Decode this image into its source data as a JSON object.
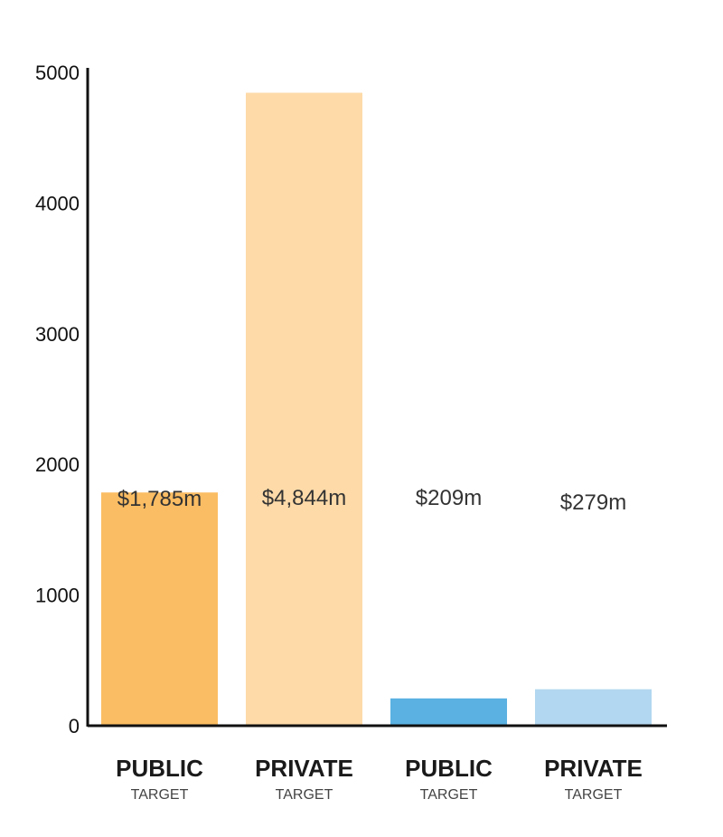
{
  "chart_data": {
    "type": "bar",
    "ylim": [
      0,
      5000
    ],
    "yticks": [
      0,
      1000,
      2000,
      3000,
      4000,
      5000
    ],
    "grid": false,
    "categories": [
      {
        "label": "PUBLIC",
        "sublabel": "TARGET"
      },
      {
        "label": "PRIVATE",
        "sublabel": "TARGET"
      },
      {
        "label": "PUBLIC",
        "sublabel": "TARGET"
      },
      {
        "label": "PRIVATE",
        "sublabel": "TARGET"
      }
    ],
    "values": [
      1785,
      4844,
      209,
      279
    ],
    "value_labels": [
      "$1,785m",
      "$4,844m",
      "$209m",
      "$279m"
    ],
    "colors": [
      "#fbbd63",
      "#fddaa8",
      "#5ab1e2",
      "#b2d7f0"
    ]
  }
}
